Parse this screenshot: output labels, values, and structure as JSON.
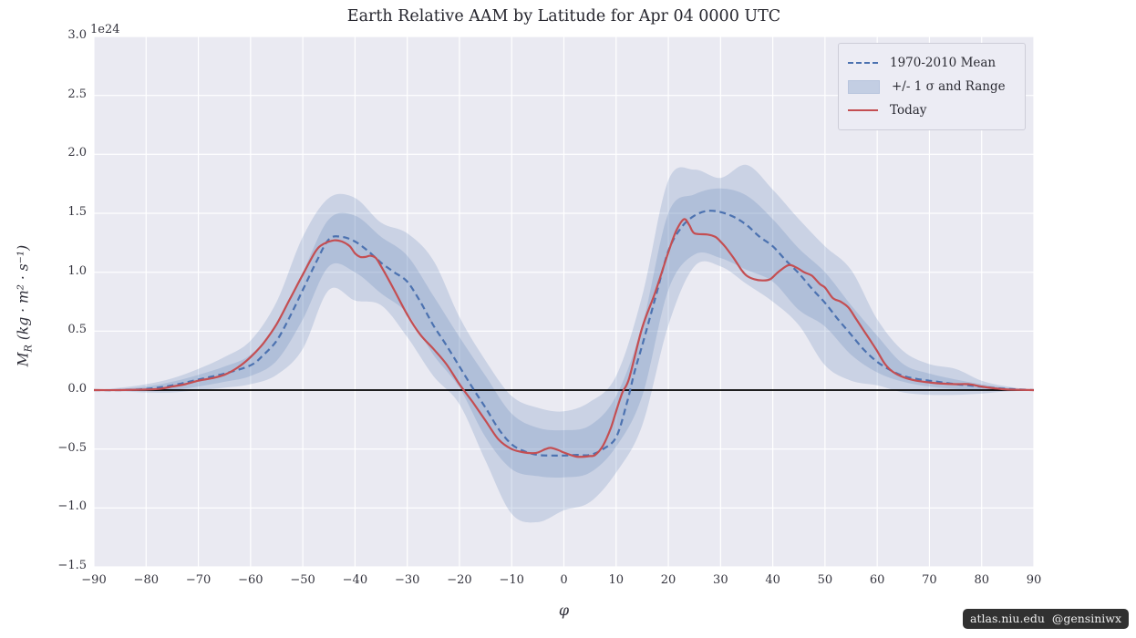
{
  "figure": {
    "offset_text": "1e24",
    "watermark": "atlas.niu.edu  @gensiniwx",
    "ylabel": {
      "symbol": "M",
      "subscript": "R",
      "units": " (kg · m² · s⁻¹)"
    }
  },
  "legend": {
    "items": [
      {
        "label": "1970-2010 Mean",
        "type": "dashed-line",
        "color": "#4C72B0"
      },
      {
        "label": "+/- 1 σ and Range",
        "type": "patch",
        "color": "#C3CEE3"
      },
      {
        "label": "Today",
        "type": "solid-line",
        "color": "#C44E52"
      }
    ]
  },
  "chart_data": {
    "type": "line",
    "title": "Earth Relative AAM by Latitude for Apr 04 0000 UTC",
    "xlabel": "φ",
    "ylabel": "M_R (kg · m² · s⁻¹)",
    "y_scale_factor": "1e24",
    "xlim": [
      -90,
      90
    ],
    "ylim": [
      -1.5,
      3.0
    ],
    "grid": true,
    "legend_position": "upper right",
    "xtick_values": [
      -90,
      -80,
      -70,
      -60,
      -50,
      -40,
      -30,
      -20,
      -10,
      0,
      10,
      20,
      30,
      40,
      50,
      60,
      70,
      80,
      90
    ],
    "xtick_labels": [
      "−90",
      "−80",
      "−70",
      "−60",
      "−50",
      "−40",
      "−30",
      "−20",
      "−10",
      "0",
      "10",
      "20",
      "30",
      "40",
      "50",
      "60",
      "70",
      "80",
      "90"
    ],
    "ytick_values": [
      -1.5,
      -1.0,
      -0.5,
      0.0,
      0.5,
      1.0,
      1.5,
      2.0,
      2.5,
      3.0
    ],
    "ytick_labels": [
      "−1.5",
      "−1.0",
      "−0.5",
      "0.0",
      "0.5",
      "1.0",
      "1.5",
      "2.0",
      "2.5",
      "3.0"
    ],
    "colors": {
      "axes_background": "#EAEAF2",
      "grid": "#FFFFFF",
      "mean_line": "#4C72B0",
      "today_line": "#C44E52",
      "band_fill": "#4C72B0",
      "band_opacity": 0.2,
      "zero_line": "#000000"
    },
    "series": [
      {
        "name": "1970-2010 Mean",
        "style": "dashed",
        "x": [
          -90,
          -85,
          -80,
          -75,
          -70,
          -65,
          -60,
          -57.5,
          -55,
          -52.5,
          -50,
          -47.5,
          -45,
          -42.5,
          -40,
          -37.5,
          -35,
          -32.5,
          -30,
          -27.5,
          -25,
          -22.5,
          -20,
          -17.5,
          -15,
          -12.5,
          -10,
          -7.5,
          -5,
          -2.5,
          0,
          2.5,
          5,
          7.5,
          10,
          12,
          13.5,
          15,
          17.5,
          20,
          22.5,
          25,
          27.5,
          30,
          32.5,
          35,
          37.5,
          40,
          42.5,
          45,
          47.5,
          50,
          52.5,
          55,
          57.5,
          60,
          62.5,
          65,
          67.5,
          70,
          72.5,
          75,
          77.5,
          80,
          82.5,
          85,
          90
        ],
        "y": [
          0,
          0,
          0.01,
          0.04,
          0.09,
          0.14,
          0.21,
          0.3,
          0.42,
          0.62,
          0.85,
          1.08,
          1.28,
          1.3,
          1.26,
          1.18,
          1.08,
          1.0,
          0.92,
          0.75,
          0.55,
          0.38,
          0.2,
          0.02,
          -0.15,
          -0.33,
          -0.46,
          -0.52,
          -0.55,
          -0.555,
          -0.555,
          -0.55,
          -0.55,
          -0.5,
          -0.4,
          -0.12,
          0.15,
          0.38,
          0.78,
          1.18,
          1.38,
          1.48,
          1.52,
          1.51,
          1.47,
          1.4,
          1.3,
          1.22,
          1.1,
          0.99,
          0.86,
          0.74,
          0.6,
          0.47,
          0.34,
          0.24,
          0.17,
          0.12,
          0.095,
          0.08,
          0.065,
          0.05,
          0.04,
          0.028,
          0.018,
          0.01,
          0
        ]
      },
      {
        "name": "Today",
        "style": "solid",
        "x": [
          -90,
          -85,
          -80,
          -77.5,
          -75,
          -72.5,
          -70,
          -67.5,
          -65,
          -62.5,
          -60,
          -57.5,
          -55,
          -52.5,
          -50,
          -47.5,
          -46,
          -44,
          -42.5,
          -41,
          -40,
          -39,
          -38,
          -37,
          -36,
          -35,
          -32.5,
          -30,
          -27.5,
          -25,
          -22.5,
          -20,
          -17.5,
          -15,
          -12.5,
          -10,
          -7.5,
          -6,
          -5,
          -3.5,
          -2.5,
          -1,
          0,
          2.5,
          5,
          6,
          7.5,
          9,
          10,
          11.2,
          12.5,
          15,
          17.5,
          20,
          21.5,
          23,
          24,
          25,
          27.5,
          29,
          30,
          31,
          32.5,
          34,
          35,
          36.5,
          38,
          39.5,
          41,
          43,
          44.5,
          46,
          47.5,
          49,
          50,
          51.5,
          53,
          54.5,
          56,
          57.5,
          59,
          60,
          61.5,
          63,
          65,
          67.5,
          70,
          72.5,
          75,
          77.5,
          80,
          82.5,
          85,
          90
        ],
        "y": [
          0,
          0,
          0.005,
          0.01,
          0.03,
          0.05,
          0.08,
          0.1,
          0.13,
          0.19,
          0.28,
          0.4,
          0.56,
          0.77,
          0.98,
          1.18,
          1.24,
          1.27,
          1.26,
          1.22,
          1.16,
          1.13,
          1.13,
          1.14,
          1.12,
          1.05,
          0.85,
          0.64,
          0.47,
          0.35,
          0.22,
          0.05,
          -0.1,
          -0.26,
          -0.42,
          -0.5,
          -0.53,
          -0.535,
          -0.53,
          -0.5,
          -0.49,
          -0.51,
          -0.53,
          -0.565,
          -0.56,
          -0.55,
          -0.47,
          -0.32,
          -0.18,
          -0.02,
          0.1,
          0.53,
          0.83,
          1.17,
          1.35,
          1.45,
          1.4,
          1.33,
          1.32,
          1.3,
          1.26,
          1.21,
          1.12,
          1.02,
          0.97,
          0.94,
          0.93,
          0.94,
          1.0,
          1.06,
          1.04,
          1.0,
          0.97,
          0.9,
          0.87,
          0.78,
          0.75,
          0.7,
          0.6,
          0.5,
          0.4,
          0.33,
          0.22,
          0.155,
          0.11,
          0.08,
          0.065,
          0.055,
          0.05,
          0.05,
          0.03,
          0.015,
          0.005,
          0
        ]
      }
    ],
    "bands": {
      "x": [
        -90,
        -85,
        -80,
        -75,
        -70,
        -65,
        -60,
        -55,
        -50,
        -45,
        -40,
        -35,
        -30,
        -25,
        -20,
        -15,
        -10,
        -5,
        0,
        5,
        10,
        15,
        20,
        25,
        30,
        35,
        40,
        45,
        50,
        55,
        60,
        65,
        70,
        75,
        80,
        85,
        90
      ],
      "sigma_upper": [
        0,
        0.01,
        0.03,
        0.07,
        0.13,
        0.2,
        0.3,
        0.55,
        1.0,
        1.45,
        1.48,
        1.3,
        1.14,
        0.8,
        0.45,
        0.12,
        -0.2,
        -0.32,
        -0.34,
        -0.3,
        -0.05,
        0.55,
        1.5,
        1.66,
        1.71,
        1.65,
        1.45,
        1.2,
        1.0,
        0.72,
        0.46,
        0.22,
        0.14,
        0.09,
        0.05,
        0.02,
        0
      ],
      "sigma_lower": [
        0,
        0,
        -0.01,
        0,
        0.03,
        0.07,
        0.12,
        0.25,
        0.6,
        1.05,
        1.0,
        0.82,
        0.65,
        0.3,
        0.02,
        -0.4,
        -0.67,
        -0.73,
        -0.74,
        -0.7,
        -0.48,
        -0.05,
        0.85,
        1.15,
        1.12,
        1.02,
        0.92,
        0.68,
        0.54,
        0.3,
        0.15,
        0.07,
        0.03,
        0.01,
        0,
        -0.01,
        0
      ],
      "range_upper": [
        0,
        0.02,
        0.05,
        0.1,
        0.18,
        0.28,
        0.42,
        0.75,
        1.3,
        1.63,
        1.63,
        1.42,
        1.33,
        1.1,
        0.62,
        0.25,
        -0.05,
        -0.15,
        -0.18,
        -0.1,
        0.12,
        0.8,
        1.78,
        1.87,
        1.8,
        1.91,
        1.7,
        1.45,
        1.22,
        1.02,
        0.6,
        0.33,
        0.22,
        0.18,
        0.08,
        0.03,
        0
      ],
      "range_lower": [
        0,
        -0.01,
        -0.02,
        -0.02,
        0,
        0.02,
        0.05,
        0.13,
        0.35,
        0.85,
        0.76,
        0.72,
        0.45,
        0.12,
        -0.12,
        -0.6,
        -1.05,
        -1.12,
        -1.02,
        -0.95,
        -0.7,
        -0.3,
        0.55,
        1.05,
        1.05,
        0.9,
        0.75,
        0.55,
        0.21,
        0.08,
        0.04,
        -0.02,
        -0.04,
        -0.04,
        -0.03,
        -0.01,
        0
      ]
    }
  }
}
